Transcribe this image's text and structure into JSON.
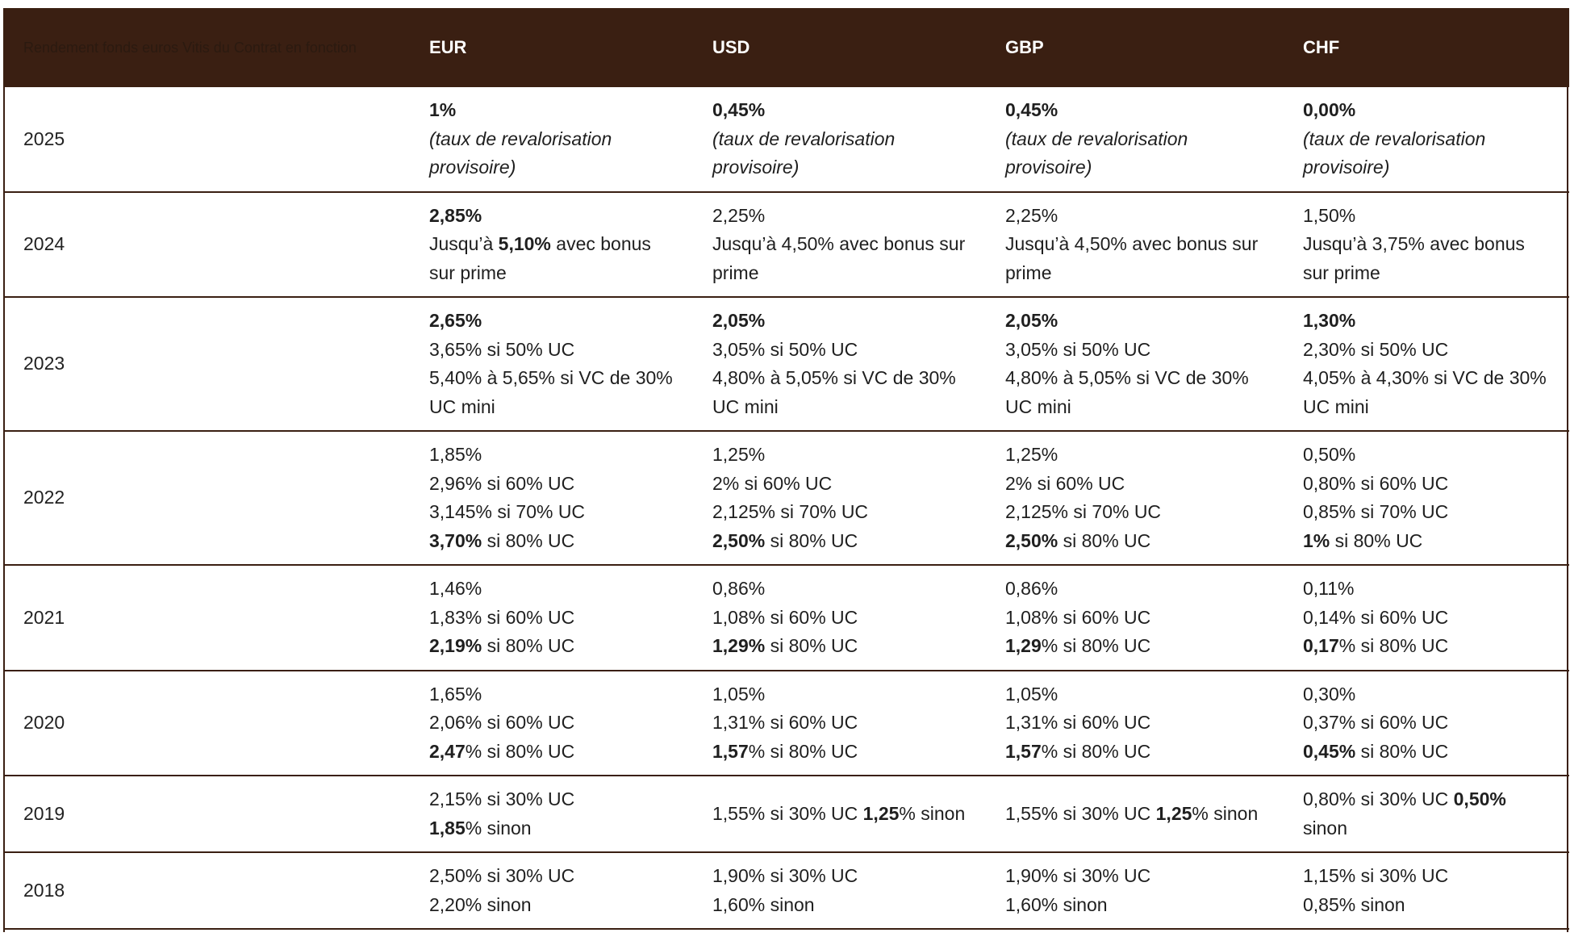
{
  "header": {
    "corner_label": "Rendement fonds euros Vitis du Contrat en fonction",
    "currencies": [
      "EUR",
      "USD",
      "GBP",
      "CHF"
    ]
  },
  "rows": [
    {
      "year": "2025",
      "cells": [
        [
          [
            {
              "t": "1%",
              "b": true
            }
          ],
          [
            {
              "t": "(taux de revalorisation provisoire)",
              "i": true
            }
          ]
        ],
        [
          [
            {
              "t": "0,45%",
              "b": true
            }
          ],
          [
            {
              "t": "(taux de revalorisation provisoire)",
              "i": true
            }
          ]
        ],
        [
          [
            {
              "t": "0,45%",
              "b": true
            }
          ],
          [
            {
              "t": "(taux de revalorisation provisoire)",
              "i": true
            }
          ]
        ],
        [
          [
            {
              "t": "0,00%",
              "b": true
            }
          ],
          [
            {
              "t": "(taux de revalorisation provisoire)",
              "i": true
            }
          ]
        ]
      ]
    },
    {
      "year": "2024",
      "cells": [
        [
          [
            {
              "t": "2,85%",
              "b": true
            }
          ],
          [
            {
              "t": "Jusqu’à "
            },
            {
              "t": "5,10%",
              "b": true
            },
            {
              "t": " avec bonus sur prime"
            }
          ]
        ],
        [
          [
            {
              "t": "2,25%"
            }
          ],
          [
            {
              "t": "Jusqu’à 4,50% avec bonus sur prime"
            }
          ]
        ],
        [
          [
            {
              "t": "2,25%"
            }
          ],
          [
            {
              "t": "Jusqu’à 4,50% avec bonus sur prime"
            }
          ]
        ],
        [
          [
            {
              "t": "1,50%"
            }
          ],
          [
            {
              "t": "Jusqu’à 3,75% avec bonus sur prime"
            }
          ]
        ]
      ]
    },
    {
      "year": "2023",
      "cells": [
        [
          [
            {
              "t": "2,65%",
              "b": true
            }
          ],
          [
            {
              "t": "3,65% si 50% UC"
            }
          ],
          [
            {
              "t": "5,40% à 5,65% si VC de 30% UC mini"
            }
          ]
        ],
        [
          [
            {
              "t": "2,05%",
              "b": true
            }
          ],
          [
            {
              "t": "3,05% si 50% UC"
            }
          ],
          [
            {
              "t": "4,80% à 5,05% si VC de 30% UC mini"
            }
          ]
        ],
        [
          [
            {
              "t": "2,05%",
              "b": true
            }
          ],
          [
            {
              "t": "3,05% si 50% UC"
            }
          ],
          [
            {
              "t": "4,80% à 5,05% si VC de 30% UC mini"
            }
          ]
        ],
        [
          [
            {
              "t": "1,30%",
              "b": true
            }
          ],
          [
            {
              "t": "2,30% si 50% UC"
            }
          ],
          [
            {
              "t": "4,05% à 4,30% si VC de 30% UC mini"
            }
          ]
        ]
      ]
    },
    {
      "year": "2022",
      "cells": [
        [
          [
            {
              "t": "1,85%"
            }
          ],
          [
            {
              "t": "2,96% si 60% UC"
            }
          ],
          [
            {
              "t": "3,145% si 70% UC"
            }
          ],
          [
            {
              "t": "3,70%",
              "b": true
            },
            {
              "t": " si 80% UC"
            }
          ]
        ],
        [
          [
            {
              "t": "1,25%"
            }
          ],
          [
            {
              "t": "2% si 60% UC"
            }
          ],
          [
            {
              "t": "2,125% si 70% UC"
            }
          ],
          [
            {
              "t": "2,50%",
              "b": true
            },
            {
              "t": " si 80% UC"
            }
          ]
        ],
        [
          [
            {
              "t": "1,25%"
            }
          ],
          [
            {
              "t": "2% si 60% UC"
            }
          ],
          [
            {
              "t": "2,125% si 70% UC"
            }
          ],
          [
            {
              "t": "2,50%",
              "b": true
            },
            {
              "t": " si 80% UC"
            }
          ]
        ],
        [
          [
            {
              "t": "0,50%"
            }
          ],
          [
            {
              "t": "0,80% si 60% UC"
            }
          ],
          [
            {
              "t": "0,85% si 70% UC"
            }
          ],
          [
            {
              "t": "1%",
              "b": true
            },
            {
              "t": " si 80% UC"
            }
          ]
        ]
      ]
    },
    {
      "year": "2021",
      "cells": [
        [
          [
            {
              "t": "1,46%"
            }
          ],
          [
            {
              "t": "1,83% si 60% UC"
            }
          ],
          [
            {
              "t": "2,19%",
              "b": true
            },
            {
              "t": " si 80% UC"
            }
          ]
        ],
        [
          [
            {
              "t": "0,86%"
            }
          ],
          [
            {
              "t": "1,08% si 60% UC"
            }
          ],
          [
            {
              "t": "1,29%",
              "b": true
            },
            {
              "t": " si 80% UC"
            }
          ]
        ],
        [
          [
            {
              "t": "0,86%"
            }
          ],
          [
            {
              "t": "1,08% si 60% UC"
            }
          ],
          [
            {
              "t": "1,29",
              "b": true
            },
            {
              "t": "% si 80% UC"
            }
          ]
        ],
        [
          [
            {
              "t": "0,11%"
            }
          ],
          [
            {
              "t": "0,14% si 60% UC"
            }
          ],
          [
            {
              "t": "0,17",
              "b": true
            },
            {
              "t": "% si 80% UC"
            }
          ]
        ]
      ]
    },
    {
      "year": "2020",
      "cells": [
        [
          [
            {
              "t": "1,65%"
            }
          ],
          [
            {
              "t": "2,06% si 60% UC"
            }
          ],
          [
            {
              "t": "2,47",
              "b": true
            },
            {
              "t": "% si 80% UC"
            }
          ]
        ],
        [
          [
            {
              "t": "1,05%"
            }
          ],
          [
            {
              "t": "1,31% si 60% UC"
            }
          ],
          [
            {
              "t": "1,57",
              "b": true
            },
            {
              "t": "% si 80% UC"
            }
          ]
        ],
        [
          [
            {
              "t": "1,05%"
            }
          ],
          [
            {
              "t": "1,31% si 60% UC"
            }
          ],
          [
            {
              "t": "1,57",
              "b": true
            },
            {
              "t": "% si 80% UC"
            }
          ]
        ],
        [
          [
            {
              "t": "0,30%"
            }
          ],
          [
            {
              "t": "0,37% si 60% UC"
            }
          ],
          [
            {
              "t": "0,45%",
              "b": true
            },
            {
              "t": " si 80% UC"
            }
          ]
        ]
      ]
    },
    {
      "year": "2019",
      "cells": [
        [
          [
            {
              "t": "2,15% si 30% UC"
            }
          ],
          [
            {
              "t": "1,85",
              "b": true
            },
            {
              "t": "% sinon"
            }
          ]
        ],
        [
          [
            {
              "t": "1,55% si 30% UC "
            },
            {
              "t": "1,25",
              "b": true
            },
            {
              "t": "% sinon"
            }
          ]
        ],
        [
          [
            {
              "t": "1,55% si 30% UC "
            },
            {
              "t": "1,25",
              "b": true
            },
            {
              "t": "% sinon"
            }
          ]
        ],
        [
          [
            {
              "t": "0,80% si 30% UC "
            },
            {
              "t": "0,50%",
              "b": true
            },
            {
              "t": " sinon"
            }
          ]
        ]
      ]
    },
    {
      "year": "2018",
      "cells": [
        [
          [
            {
              "t": "2,50% si 30% UC"
            }
          ],
          [
            {
              "t": "2,20% sinon"
            }
          ]
        ],
        [
          [
            {
              "t": "1,90% si 30% UC"
            }
          ],
          [
            {
              "t": "1,60% sinon"
            }
          ]
        ],
        [
          [
            {
              "t": "1,90% si 30% UC"
            }
          ],
          [
            {
              "t": "1,60% sinon"
            }
          ]
        ],
        [
          [
            {
              "t": "1,15% si 30% UC"
            }
          ],
          [
            {
              "t": "0,85% sinon"
            }
          ]
        ]
      ]
    }
  ]
}
